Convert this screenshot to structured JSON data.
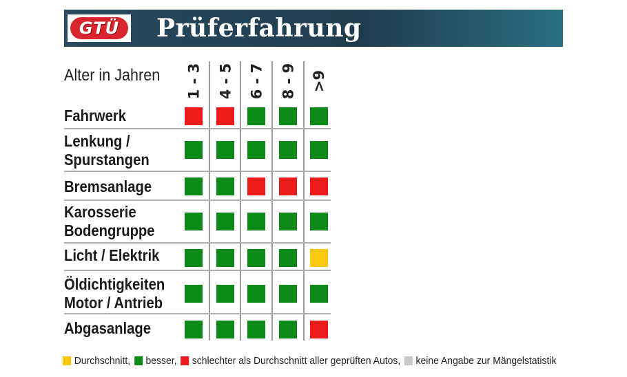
{
  "header": {
    "logo_text": "GTÜ",
    "title": "Prüferfahrung"
  },
  "chart_data": {
    "type": "heatmap",
    "title": "Prüferfahrung",
    "xlabel": "Alter in Jahren",
    "columns": [
      "1 - 3",
      "4 - 5",
      "6 - 7",
      "8 - 9",
      ">9"
    ],
    "rows": [
      {
        "label_lines": [
          "Fahrwerk"
        ],
        "values": [
          "red",
          "red",
          "green",
          "green",
          "green"
        ]
      },
      {
        "label_lines": [
          "Lenkung /",
          "Spurstangen"
        ],
        "values": [
          "green",
          "green",
          "green",
          "green",
          "green"
        ]
      },
      {
        "label_lines": [
          "Bremsanlage"
        ],
        "values": [
          "green",
          "green",
          "red",
          "red",
          "red"
        ]
      },
      {
        "label_lines": [
          "Karosserie",
          "Bodengruppe"
        ],
        "values": [
          "green",
          "green",
          "green",
          "green",
          "green"
        ]
      },
      {
        "label_lines": [
          "Licht / Elektrik"
        ],
        "values": [
          "green",
          "green",
          "green",
          "green",
          "yellow"
        ]
      },
      {
        "label_lines": [
          "Öldichtigkeiten",
          "Motor / Antrieb"
        ],
        "values": [
          "green",
          "green",
          "green",
          "green",
          "green"
        ]
      },
      {
        "label_lines": [
          "Abgasanlage"
        ],
        "values": [
          "green",
          "green",
          "green",
          "green",
          "red"
        ]
      }
    ],
    "colors": {
      "green": "#0d8a1a",
      "red": "#ed1c1c",
      "yellow": "#f9c80e",
      "grey": "#c8c8c8"
    },
    "legend": [
      {
        "color": "yellow",
        "text": "Durchschnitt,"
      },
      {
        "color": "green",
        "text": "besser,"
      },
      {
        "color": "red",
        "text": "schlechter als Durchschnitt aller geprüften Autos,"
      },
      {
        "color": "grey",
        "text": "keine Angabe zur Mängelstatistik"
      }
    ]
  }
}
